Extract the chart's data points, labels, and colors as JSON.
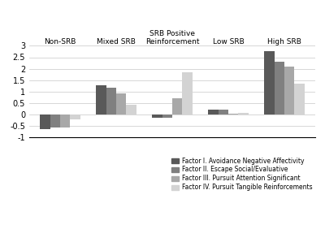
{
  "groups": [
    "Non-SRB",
    "Mixed SRB",
    "SRB Positive\nReinforcement",
    "Low SRB",
    "High SRB"
  ],
  "factors": [
    "Factor I. Avoidance Negative Affectivity",
    "Factor II. Escape Social/Evaluative",
    "Factor III. Pursuit Attention Significant",
    "Factor IV. Pursuit Tangible Reinforcements"
  ],
  "values": [
    [
      -0.65,
      1.28,
      -0.13,
      0.22,
      2.75
    ],
    [
      -0.58,
      1.18,
      -0.15,
      0.2,
      2.32
    ],
    [
      -0.58,
      0.93,
      0.72,
      0.03,
      2.08
    ],
    [
      -0.2,
      0.42,
      1.83,
      0.07,
      1.35
    ]
  ],
  "colors": [
    "#595959",
    "#808080",
    "#a8a8a8",
    "#d3d3d3"
  ],
  "ylim": [
    -1,
    3
  ],
  "yticks": [
    -1,
    -0.5,
    0,
    0.5,
    1,
    1.5,
    2,
    2.5,
    3
  ],
  "bar_width": 0.18,
  "background_color": "#ffffff",
  "grid_color": "#c8c8c8"
}
